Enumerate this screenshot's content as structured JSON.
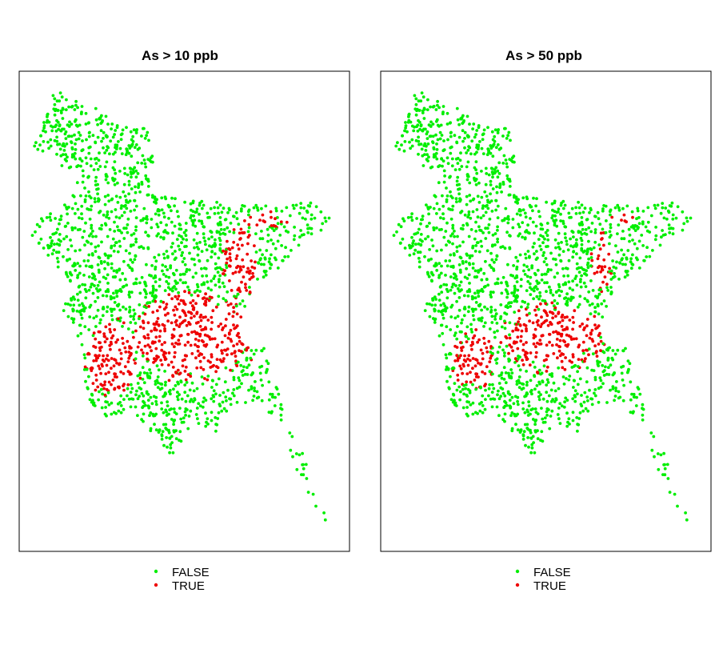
{
  "colors": {
    "false_color": "#00ee00",
    "true_color": "#ee0000",
    "frame": "#000000"
  },
  "chart_data": [
    {
      "type": "scatter",
      "title": "As > 10 ppb",
      "legend": {
        "placement": "bottom-center",
        "entries": [
          {
            "label": "FALSE",
            "color": "#00ee00"
          },
          {
            "label": "TRUE",
            "color": "#ee0000"
          }
        ]
      },
      "threshold_ppb": 10,
      "grid": false,
      "axes_visible": false
    },
    {
      "type": "scatter",
      "title": "As > 50 ppb",
      "legend": {
        "placement": "bottom-center",
        "entries": [
          {
            "label": "FALSE",
            "color": "#00ee00"
          },
          {
            "label": "TRUE",
            "color": "#ee0000"
          }
        ]
      },
      "threshold_ppb": 50,
      "grid": false,
      "axes_visible": false
    }
  ]
}
